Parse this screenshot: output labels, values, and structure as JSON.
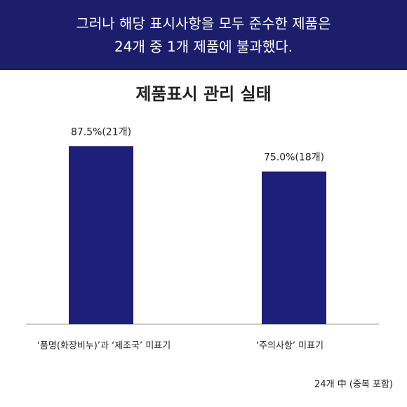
{
  "header": {
    "lines": [
      "그러나 해당 표시사항을 모두 준수한 제품은",
      "24개 중 1개 제품에 불과했다."
    ]
  },
  "chart_data": {
    "type": "bar",
    "title": "제품표시 관리 실태",
    "categories": [
      "‘품명(화장비누)’과 ‘제조국’ 미표기",
      "‘주의사항’ 미표기"
    ],
    "values": [
      87.5,
      75.0
    ],
    "value_labels": [
      "87.5%(21개)",
      "75.0%(18개)"
    ],
    "color": "#1e1f78"
  },
  "note": "24개 中 (중복 포함)"
}
